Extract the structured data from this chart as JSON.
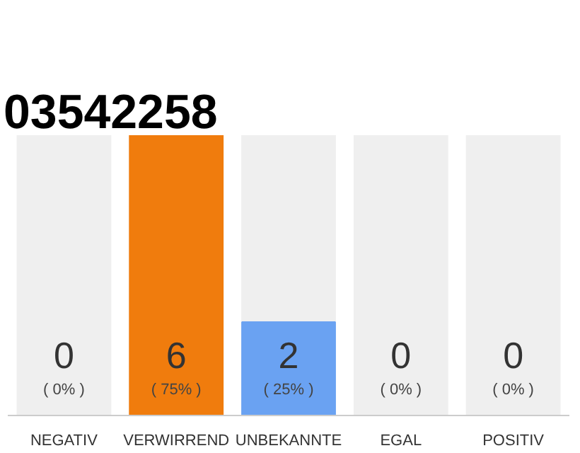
{
  "chart_data": {
    "type": "bar",
    "title": "03542258",
    "categories": [
      "NEGATIV",
      "VERWIRREND",
      "UNBEKANNTE",
      "EGAL",
      "POSITIV"
    ],
    "values": [
      0,
      6,
      2,
      0,
      0
    ],
    "colors": [
      "#f07c0d",
      "#f07c0d",
      "#6aa2f2",
      "#f07c0d",
      "#f07c0d"
    ],
    "data_labels": true,
    "annotations": [
      "( 0% )",
      "( 75% )",
      "( 25% )",
      "( 0% )",
      "( 0% )"
    ],
    "grid": false
  }
}
